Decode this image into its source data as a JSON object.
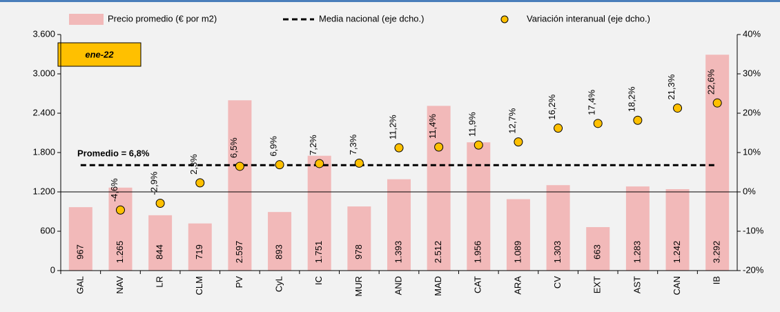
{
  "chart_data": {
    "type": "bar",
    "annotations": {
      "box": "ene-22",
      "mean": "Promedio = 6,8%"
    },
    "categories": [
      "GAL",
      "NAV",
      "LR",
      "CLM",
      "PV",
      "CyL",
      "IC",
      "MUR",
      "AND",
      "MAD",
      "CAT",
      "ARA",
      "CV",
      "EXT",
      "AST",
      "CAN",
      "IB"
    ],
    "series": [
      {
        "name": "Precio promedio (€ por m2)",
        "type": "bar",
        "color": "#f2b9b9",
        "values": [
          967,
          1265,
          844,
          719,
          2597,
          893,
          1751,
          978,
          1393,
          2512,
          1956,
          1089,
          1303,
          663,
          1283,
          1242,
          3292
        ],
        "value_labels": [
          "967",
          "1.265",
          "844",
          "719",
          "2.597",
          "893",
          "1.751",
          "978",
          "1.393",
          "2.512",
          "1.956",
          "1.089",
          "1.303",
          "663",
          "1.283",
          "1.242",
          "3.292"
        ]
      },
      {
        "name": "Media nacional (eje dcho.)",
        "type": "line",
        "axis": "y2",
        "color": "#000000",
        "dashed": true,
        "values": [
          6.8,
          6.8,
          6.8,
          6.8,
          6.8,
          6.8,
          6.8,
          6.8,
          6.8,
          6.8,
          6.8,
          6.8,
          6.8,
          6.8,
          6.8,
          6.8,
          6.8
        ]
      },
      {
        "name": "Variación interanual (eje dcho.)",
        "type": "scatter",
        "axis": "y2",
        "color": "#ffc000",
        "values": [
          null,
          -4.6,
          -2.9,
          2.3,
          6.5,
          6.9,
          7.2,
          7.3,
          11.2,
          11.4,
          11.9,
          12.7,
          16.2,
          17.4,
          18.2,
          21.3,
          22.6
        ],
        "value_labels": [
          null,
          "-4,6%",
          "-2,9%",
          "2,3%",
          "6,5%",
          "6,9%",
          "7,2%",
          "7,3%",
          "11,2%",
          "11,4%",
          "11,9%",
          "12,7%",
          "16,2%",
          "17,4%",
          "18,2%",
          "21,3%",
          "22,6%"
        ]
      }
    ],
    "ylim": [
      0,
      3600
    ],
    "yticks": [
      0,
      600,
      {
        "value": 1200,
        "label": "1.200"
      },
      {
        "value": 1800,
        "label": "1.800"
      },
      {
        "value": 2400,
        "label": "2.400"
      },
      {
        "value": 3000,
        "label": "3.000"
      },
      {
        "value": 3600,
        "label": "3.600"
      }
    ],
    "y2lim": [
      -20,
      40
    ],
    "y2ticks": [
      {
        "value": -20,
        "label": "-20%"
      },
      {
        "value": -10,
        "label": "-10%"
      },
      {
        "value": 0,
        "label": "0%"
      },
      {
        "value": 10,
        "label": "10%"
      },
      {
        "value": 20,
        "label": "20%"
      },
      {
        "value": 30,
        "label": "30%"
      },
      {
        "value": 40,
        "label": "40%"
      }
    ],
    "legend": "top",
    "grid": false
  }
}
